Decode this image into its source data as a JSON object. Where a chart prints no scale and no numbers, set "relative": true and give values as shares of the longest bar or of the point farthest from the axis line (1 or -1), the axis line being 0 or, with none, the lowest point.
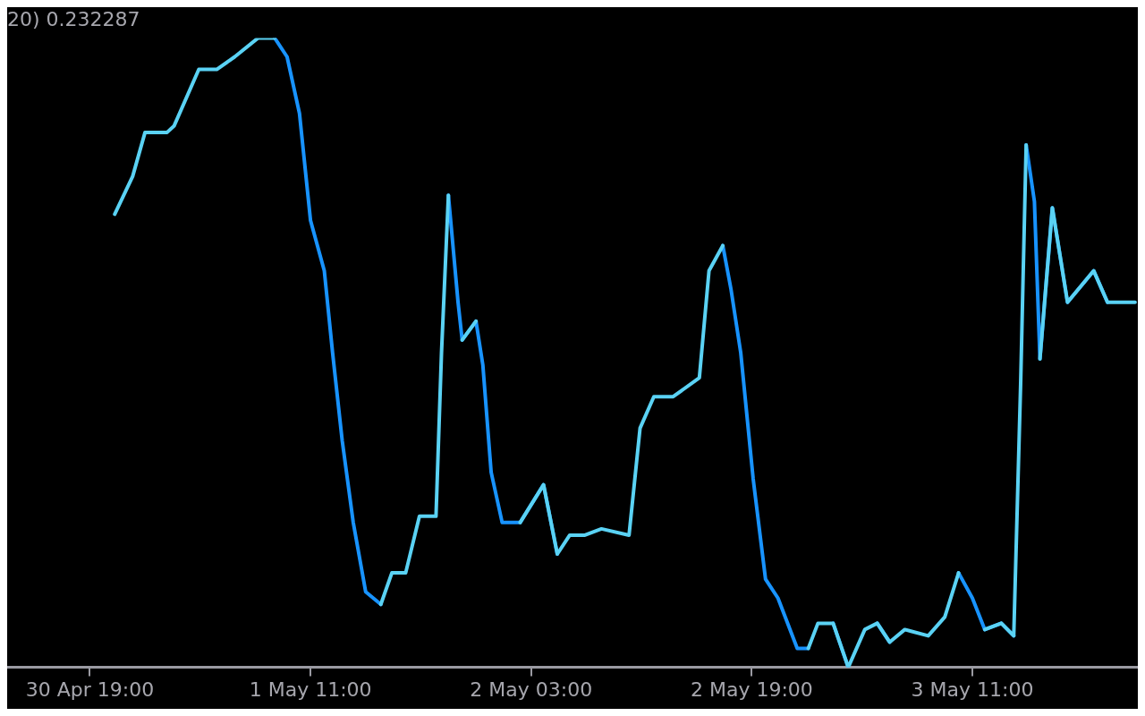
{
  "chart_data": {
    "type": "line",
    "title": "20) 0.232287",
    "relative": true,
    "marker": "none",
    "line_style": "solid",
    "legend": false,
    "xlim": [
      "--04-30T13:00",
      "--05-03T23:00"
    ],
    "xticks": [
      {
        "value": "--04-30T19:00",
        "label": "30 Apr 19:00"
      },
      {
        "value": "--05-01T11:00",
        "label": "1 May 11:00"
      },
      {
        "value": "--05-02T03:00",
        "label": "2 May 03:00"
      },
      {
        "value": "--05-02T19:00",
        "label": "2 May 19:00"
      },
      {
        "value": "--05-03T11:00",
        "label": "3 May 11:00"
      }
    ],
    "x": [
      "--04-30T20:48",
      "--04-30T22:06",
      "--04-30T23:00",
      "--05-01T00:36",
      "--05-01T01:06",
      "--05-01T02:54",
      "--05-01T04:12",
      "--05-01T05:30",
      "--05-01T07:12",
      "--05-01T08:24",
      "--05-01T09:18",
      "--05-01T10:12",
      "--05-01T11:00",
      "--05-01T12:00",
      "--05-01T12:36",
      "--05-01T13:18",
      "--05-01T14:06",
      "--05-01T15:00",
      "--05-01T16:06",
      "--05-01T16:54",
      "--05-01T17:54",
      "--05-01T18:54",
      "--05-01T20:06",
      "--05-01T20:30",
      "--05-01T21:00",
      "--05-01T21:42",
      "--05-01T22:00",
      "--05-01T23:00",
      "--05-01T23:30",
      "--05-02T00:06",
      "--05-02T00:54",
      "--05-02T02:12",
      "--05-02T03:54",
      "--05-02T04:54",
      "--05-02T05:48",
      "--05-02T06:54",
      "--05-02T08:06",
      "--05-02T10:06",
      "--05-02T10:54",
      "--05-02T11:54",
      "--05-02T13:18",
      "--05-02T15:12",
      "--05-02T15:54",
      "--05-02T16:54",
      "--05-02T17:30",
      "--05-02T18:12",
      "--05-02T19:06",
      "--05-02T20:00",
      "--05-02T20:54",
      "--05-02T22:18",
      "--05-02T23:06",
      "--05-02T23:48",
      "--05-03T00:54",
      "--05-03T02:00",
      "--05-03T03:12",
      "--05-03T04:06",
      "--05-03T05:00",
      "--05-03T06:06",
      "--05-03T07:48",
      "--05-03T09:00",
      "--05-03T10:00",
      "--05-03T11:00",
      "--05-03T11:54",
      "--05-03T13:06",
      "--05-03T14:00",
      "--05-03T14:30",
      "--05-03T14:54",
      "--05-03T15:30",
      "--05-03T15:54",
      "--05-03T16:48",
      "--05-03T17:54",
      "--05-03T19:48",
      "--05-03T20:48",
      "--05-03T22:48"
    ],
    "series": [
      {
        "color": "#5ad2f4",
        "values": [
          0.72,
          0.78,
          0.85,
          0.85,
          0.86,
          0.95,
          0.95,
          0.97,
          1.0,
          1.0,
          null,
          null,
          null,
          null,
          null,
          null,
          null,
          null,
          0.1,
          0.15,
          0.15,
          0.24,
          0.24,
          0.5,
          0.75,
          null,
          0.52,
          0.55,
          null,
          null,
          null,
          0.23,
          0.29,
          0.18,
          0.21,
          0.21,
          0.22,
          0.21,
          0.38,
          0.43,
          0.43,
          0.46,
          0.63,
          0.67,
          null,
          null,
          null,
          null,
          null,
          null,
          0.03,
          0.07,
          0.07,
          0.0,
          0.06,
          0.07,
          0.04,
          0.06,
          0.05,
          0.08,
          0.15,
          null,
          0.06,
          0.07,
          0.05,
          0.45,
          0.83,
          null,
          0.49,
          0.73,
          0.58,
          0.63,
          0.58,
          0.58
        ]
      },
      {
        "color": "#1893ff",
        "values": [
          null,
          null,
          null,
          null,
          null,
          null,
          null,
          null,
          null,
          1.0,
          0.97,
          0.88,
          0.71,
          0.63,
          0.5,
          0.36,
          0.23,
          0.12,
          0.1,
          null,
          null,
          null,
          null,
          null,
          0.75,
          0.58,
          0.52,
          0.55,
          0.48,
          0.31,
          0.23,
          0.23,
          0.29,
          0.18,
          null,
          null,
          null,
          null,
          null,
          null,
          null,
          null,
          null,
          0.67,
          0.6,
          0.5,
          0.3,
          0.14,
          0.11,
          0.03,
          0.03,
          null,
          0.07,
          0.0,
          null,
          0.07,
          0.04,
          null,
          null,
          null,
          0.15,
          0.11,
          0.06,
          0.07,
          0.05,
          null,
          0.83,
          0.74,
          0.49,
          0.73,
          0.58,
          0.63,
          0.58,
          null
        ]
      }
    ]
  }
}
